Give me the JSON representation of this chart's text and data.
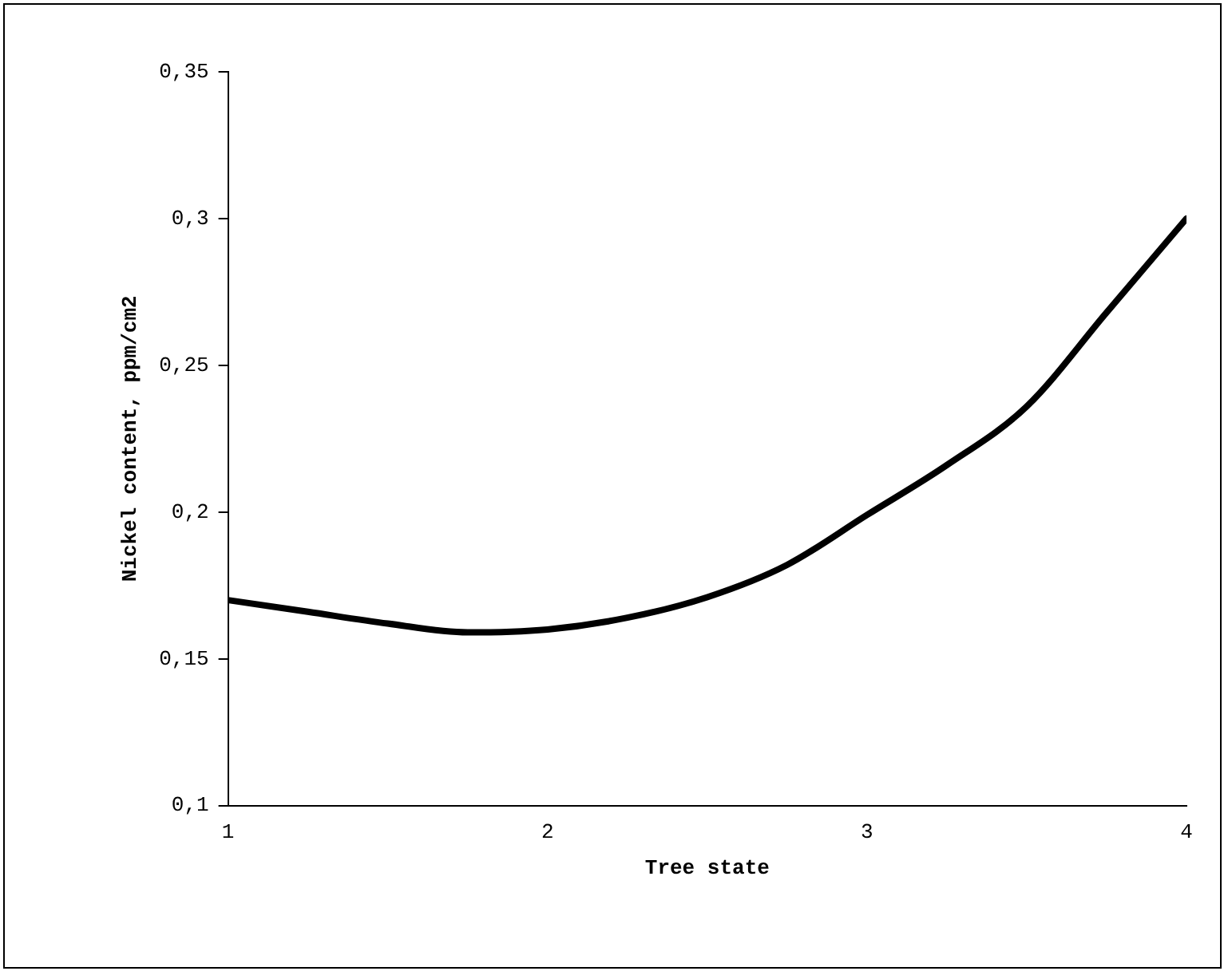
{
  "chart_data": {
    "type": "line",
    "xlabel": "Tree state",
    "ylabel": "Nickel content, ppm/cm2",
    "x": [
      1,
      1.25,
      1.5,
      1.75,
      2,
      2.25,
      2.5,
      2.75,
      3,
      3.25,
      3.5,
      3.75,
      4
    ],
    "series": [
      {
        "color": "#000000",
        "values": [
          0.17,
          0.166,
          0.162,
          0.159,
          0.16,
          0.164,
          0.171,
          0.182,
          0.199,
          0.216,
          0.236,
          0.268,
          0.3
        ]
      }
    ],
    "xlim": [
      1,
      4
    ],
    "xticks": [
      1,
      2,
      3,
      4
    ],
    "ylim": [
      0.1,
      0.35
    ],
    "yticks": [
      {
        "value": 0.1,
        "label": "0,1"
      },
      {
        "value": 0.15,
        "label": "0,15"
      },
      {
        "value": 0.2,
        "label": "0,2"
      },
      {
        "value": 0.25,
        "label": "0,25"
      },
      {
        "value": 0.3,
        "label": "0,3"
      },
      {
        "value": 0.35,
        "label": "0,35"
      }
    ],
    "grid": false,
    "legend": false,
    "marker": "none",
    "line_style": "solid"
  }
}
